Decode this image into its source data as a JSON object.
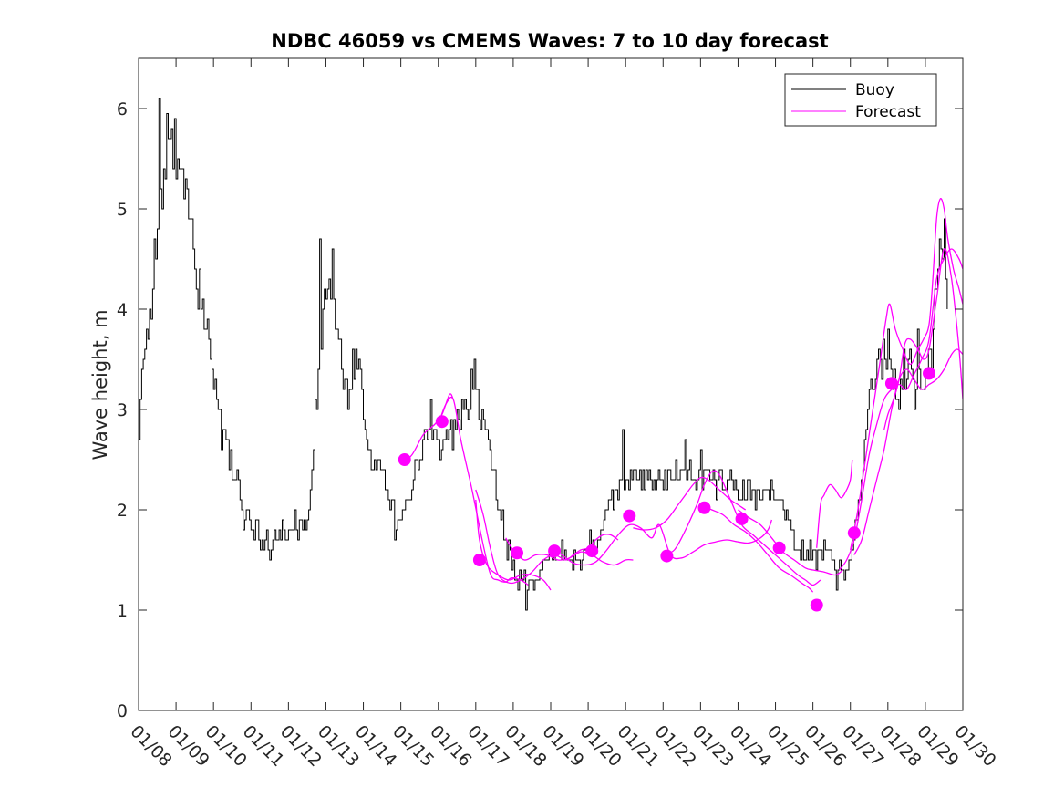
{
  "chart_data": {
    "type": "line",
    "title": "NDBC 46059 vs CMEMS Waves: 7 to 10 day forecast",
    "xlabel": "",
    "ylabel": "Wave height, m",
    "x_tick_labels": [
      "01/08",
      "01/09",
      "01/10",
      "01/11",
      "01/12",
      "01/13",
      "01/14",
      "01/15",
      "01/16",
      "01/17",
      "01/18",
      "01/19",
      "01/20",
      "01/21",
      "01/22",
      "01/23",
      "01/24",
      "01/25",
      "01/26",
      "01/27",
      "01/28",
      "01/29",
      "01/30"
    ],
    "y_ticks": [
      0,
      1,
      2,
      3,
      4,
      5,
      6
    ],
    "xlim": [
      0,
      22
    ],
    "ylim": [
      0,
      6.5
    ],
    "legend": {
      "position": "top-right",
      "entries": [
        "Buoy",
        "Forecast"
      ]
    },
    "colors": {
      "buoy": "#000000",
      "forecast": "#ff00ff"
    },
    "buoy_anchors": [
      [
        0,
        2.8
      ],
      [
        0.05,
        3.2
      ],
      [
        0.2,
        3.6
      ],
      [
        0.3,
        4.0
      ],
      [
        0.5,
        4.8
      ],
      [
        0.7,
        5.3
      ],
      [
        0.85,
        5.6
      ],
      [
        0.95,
        5.7
      ],
      [
        1.1,
        5.3
      ],
      [
        1.3,
        5.0
      ],
      [
        1.5,
        4.5
      ],
      [
        1.7,
        4.0
      ],
      [
        1.9,
        3.5
      ],
      [
        2.1,
        3.1
      ],
      [
        2.25,
        2.8
      ],
      [
        2.4,
        2.6
      ],
      [
        2.6,
        2.3
      ],
      [
        2.8,
        2.05
      ],
      [
        2.95,
        1.9
      ],
      [
        3.1,
        1.75
      ],
      [
        3.3,
        1.67
      ],
      [
        3.5,
        1.7
      ],
      [
        3.8,
        1.78
      ],
      [
        4.1,
        1.8
      ],
      [
        4.3,
        1.82
      ],
      [
        4.45,
        1.9
      ],
      [
        4.6,
        2.2
      ],
      [
        4.7,
        2.9
      ],
      [
        4.85,
        3.6
      ],
      [
        4.95,
        4.1
      ],
      [
        5.1,
        4.3
      ],
      [
        5.2,
        4.0
      ],
      [
        5.35,
        3.6
      ],
      [
        5.5,
        3.2
      ],
      [
        5.6,
        3.25
      ],
      [
        5.75,
        3.5
      ],
      [
        5.9,
        3.3
      ],
      [
        6.0,
        3.0
      ],
      [
        6.1,
        2.7
      ],
      [
        6.25,
        2.4
      ],
      [
        6.45,
        2.4
      ],
      [
        6.6,
        2.2
      ],
      [
        6.8,
        2.0
      ],
      [
        6.95,
        1.85
      ],
      [
        7.1,
        2.0
      ],
      [
        7.3,
        2.3
      ],
      [
        7.5,
        2.55
      ],
      [
        7.7,
        2.75
      ],
      [
        7.9,
        2.75
      ],
      [
        8.05,
        2.6
      ],
      [
        8.2,
        2.75
      ],
      [
        8.4,
        2.9
      ],
      [
        8.6,
        2.95
      ],
      [
        8.8,
        3.0
      ],
      [
        8.9,
        3.15
      ],
      [
        9.05,
        3.1
      ],
      [
        9.15,
        2.95
      ],
      [
        9.3,
        2.7
      ],
      [
        9.5,
        2.3
      ],
      [
        9.7,
        1.9
      ],
      [
        9.9,
        1.6
      ],
      [
        10.05,
        1.35
      ],
      [
        10.2,
        1.3
      ],
      [
        10.4,
        1.27
      ],
      [
        10.6,
        1.3
      ],
      [
        10.8,
        1.45
      ],
      [
        11.0,
        1.55
      ],
      [
        11.2,
        1.55
      ],
      [
        11.4,
        1.52
      ],
      [
        11.6,
        1.55
      ],
      [
        11.8,
        1.6
      ],
      [
        12.0,
        1.6
      ],
      [
        12.15,
        1.65
      ],
      [
        12.3,
        1.7
      ],
      [
        12.45,
        2.0
      ],
      [
        12.6,
        2.15
      ],
      [
        12.8,
        2.2
      ],
      [
        13.0,
        2.25
      ],
      [
        13.2,
        2.35
      ],
      [
        13.5,
        2.35
      ],
      [
        13.8,
        2.3
      ],
      [
        14.0,
        2.3
      ],
      [
        14.3,
        2.35
      ],
      [
        14.6,
        2.35
      ],
      [
        14.9,
        2.3
      ],
      [
        15.2,
        2.3
      ],
      [
        15.5,
        2.25
      ],
      [
        15.8,
        2.2
      ],
      [
        16.1,
        2.2
      ],
      [
        16.4,
        2.2
      ],
      [
        16.7,
        2.2
      ],
      [
        16.9,
        2.2
      ],
      [
        17.1,
        2.1
      ],
      [
        17.25,
        1.95
      ],
      [
        17.4,
        1.85
      ],
      [
        17.55,
        1.7
      ],
      [
        17.7,
        1.6
      ],
      [
        17.9,
        1.55
      ],
      [
        18.1,
        1.5
      ],
      [
        18.3,
        1.6
      ],
      [
        18.45,
        1.55
      ],
      [
        18.6,
        1.4
      ],
      [
        18.8,
        1.4
      ],
      [
        19.0,
        1.5
      ],
      [
        19.1,
        1.75
      ],
      [
        19.25,
        2.2
      ],
      [
        19.4,
        2.8
      ],
      [
        19.55,
        3.2
      ],
      [
        19.7,
        3.4
      ],
      [
        19.85,
        3.5
      ],
      [
        20.0,
        3.45
      ],
      [
        20.15,
        3.3
      ],
      [
        20.3,
        3.1
      ],
      [
        20.45,
        3.3
      ],
      [
        20.6,
        3.5
      ],
      [
        20.75,
        3.3
      ],
      [
        20.9,
        3.25
      ],
      [
        21.05,
        3.4
      ],
      [
        21.2,
        3.6
      ],
      [
        21.3,
        4.2
      ],
      [
        21.4,
        4.8
      ],
      [
        21.5,
        4.5
      ],
      [
        21.6,
        4.1
      ]
    ],
    "buoy_spikes": [
      [
        0.55,
        6.1
      ],
      [
        0.75,
        5.95
      ],
      [
        0.95,
        5.9
      ],
      [
        1.05,
        5.5
      ],
      [
        1.25,
        5.3
      ],
      [
        4.85,
        4.7
      ],
      [
        5.15,
        4.6
      ],
      [
        7.8,
        3.1
      ],
      [
        8.95,
        3.5
      ],
      [
        12.9,
        2.8
      ],
      [
        14.6,
        2.7
      ],
      [
        20.0,
        3.8
      ],
      [
        20.8,
        3.8
      ],
      [
        21.5,
        4.9
      ]
    ],
    "forecast_dots": [
      [
        7.1,
        2.5
      ],
      [
        8.1,
        2.88
      ],
      [
        9.1,
        1.5
      ],
      [
        10.1,
        1.57
      ],
      [
        11.1,
        1.59
      ],
      [
        12.1,
        1.59
      ],
      [
        13.1,
        1.94
      ],
      [
        14.1,
        1.54
      ],
      [
        15.1,
        2.02
      ],
      [
        16.1,
        1.91
      ],
      [
        17.1,
        1.62
      ],
      [
        18.1,
        1.05
      ],
      [
        19.1,
        1.77
      ],
      [
        20.1,
        3.26
      ],
      [
        21.1,
        3.36
      ]
    ],
    "forecast_lines": [
      [
        [
          7.0,
          2.45
        ],
        [
          7.3,
          2.55
        ],
        [
          7.6,
          2.75
        ],
        [
          7.9,
          2.85
        ],
        [
          8.1,
          2.95
        ],
        [
          8.3,
          3.15
        ],
        [
          8.4,
          3.1
        ]
      ],
      [
        [
          8.0,
          2.85
        ],
        [
          8.2,
          3.05
        ],
        [
          8.4,
          3.1
        ],
        [
          8.6,
          2.7
        ],
        [
          8.9,
          2.2
        ],
        [
          9.2,
          1.65
        ],
        [
          9.4,
          1.35
        ],
        [
          9.6,
          1.3
        ],
        [
          9.8,
          1.28
        ],
        [
          9.95,
          1.32
        ],
        [
          10.2,
          1.3
        ],
        [
          10.4,
          1.25
        ]
      ],
      [
        [
          9.0,
          2.1
        ],
        [
          9.1,
          1.7
        ],
        [
          9.3,
          1.45
        ],
        [
          9.6,
          1.35
        ],
        [
          9.9,
          1.3
        ],
        [
          10.2,
          1.35
        ],
        [
          10.5,
          1.35
        ],
        [
          10.8,
          1.3
        ],
        [
          11.0,
          1.2
        ]
      ],
      [
        [
          9.0,
          2.2
        ],
        [
          9.2,
          1.95
        ],
        [
          9.4,
          1.6
        ],
        [
          9.6,
          1.35
        ],
        [
          9.9,
          1.27
        ],
        [
          10.2,
          1.3
        ],
        [
          10.5,
          1.38
        ],
        [
          10.8,
          1.5
        ],
        [
          11.1,
          1.55
        ],
        [
          11.4,
          1.5
        ],
        [
          11.6,
          1.55
        ],
        [
          11.8,
          1.6
        ],
        [
          12.0,
          1.62
        ],
        [
          12.2,
          1.7
        ],
        [
          12.4,
          1.75
        ],
        [
          12.6,
          1.75
        ],
        [
          12.8,
          1.7
        ]
      ],
      [
        [
          9.8,
          1.72
        ],
        [
          10.0,
          1.6
        ],
        [
          10.3,
          1.5
        ],
        [
          10.6,
          1.55
        ],
        [
          10.9,
          1.55
        ],
        [
          11.2,
          1.5
        ],
        [
          11.5,
          1.52
        ],
        [
          11.8,
          1.58
        ],
        [
          12.1,
          1.55
        ],
        [
          12.4,
          1.48
        ],
        [
          12.7,
          1.45
        ],
        [
          13.0,
          1.5
        ],
        [
          13.2,
          1.5
        ]
      ],
      [
        [
          11.0,
          1.6
        ],
        [
          11.3,
          1.55
        ],
        [
          11.6,
          1.47
        ],
        [
          11.9,
          1.45
        ],
        [
          12.2,
          1.48
        ],
        [
          12.5,
          1.6
        ],
        [
          12.8,
          1.75
        ],
        [
          13.1,
          1.85
        ],
        [
          13.4,
          1.82
        ],
        [
          13.7,
          1.72
        ],
        [
          13.9,
          1.85
        ],
        [
          14.2,
          1.55
        ],
        [
          14.5,
          1.52
        ],
        [
          14.8,
          1.58
        ],
        [
          15.1,
          1.65
        ],
        [
          15.4,
          1.68
        ],
        [
          15.7,
          1.7
        ],
        [
          16.0,
          1.68
        ],
        [
          16.3,
          1.67
        ],
        [
          16.6,
          1.72
        ],
        [
          16.8,
          1.8
        ],
        [
          16.9,
          1.9
        ]
      ],
      [
        [
          13.2,
          1.82
        ],
        [
          13.5,
          1.8
        ],
        [
          13.8,
          1.82
        ],
        [
          14.1,
          1.9
        ],
        [
          14.4,
          2.05
        ],
        [
          14.6,
          2.15
        ],
        [
          14.8,
          2.25
        ],
        [
          15.0,
          2.32
        ],
        [
          15.2,
          2.3
        ],
        [
          15.5,
          2.2
        ],
        [
          15.8,
          2.1
        ],
        [
          16.0,
          2.05
        ],
        [
          16.2,
          2.0
        ]
      ],
      [
        [
          14.0,
          1.55
        ],
        [
          14.3,
          1.6
        ],
        [
          14.6,
          1.8
        ],
        [
          14.9,
          2.05
        ],
        [
          15.1,
          2.25
        ],
        [
          15.3,
          2.38
        ],
        [
          15.5,
          2.35
        ],
        [
          15.8,
          2.1
        ],
        [
          16.1,
          1.85
        ],
        [
          16.4,
          1.75
        ],
        [
          16.7,
          1.65
        ],
        [
          17.0,
          1.55
        ],
        [
          17.3,
          1.45
        ],
        [
          17.6,
          1.35
        ],
        [
          17.8,
          1.3
        ],
        [
          18.0,
          1.25
        ],
        [
          18.2,
          1.3
        ]
      ],
      [
        [
          15.0,
          2.05
        ],
        [
          15.3,
          2.0
        ],
        [
          15.6,
          1.95
        ],
        [
          15.9,
          1.85
        ],
        [
          16.2,
          1.78
        ],
        [
          16.5,
          1.68
        ],
        [
          16.8,
          1.55
        ],
        [
          17.1,
          1.42
        ],
        [
          17.4,
          1.35
        ],
        [
          17.7,
          1.27
        ],
        [
          17.9,
          1.22
        ],
        [
          18.0,
          1.18
        ]
      ],
      [
        [
          16.0,
          2.0
        ],
        [
          16.3,
          1.92
        ],
        [
          16.6,
          1.85
        ],
        [
          16.9,
          1.72
        ],
        [
          17.2,
          1.58
        ],
        [
          17.5,
          1.5
        ],
        [
          17.8,
          1.42
        ],
        [
          18.0,
          1.4
        ],
        [
          18.3,
          1.38
        ],
        [
          18.6,
          1.35
        ],
        [
          18.8,
          1.4
        ]
      ],
      [
        [
          18.1,
          1.62
        ],
        [
          18.2,
          2.05
        ],
        [
          18.3,
          2.15
        ],
        [
          18.45,
          2.25
        ],
        [
          18.6,
          2.2
        ],
        [
          18.75,
          2.12
        ],
        [
          18.9,
          2.2
        ],
        [
          19.0,
          2.3
        ],
        [
          19.05,
          2.5
        ]
      ],
      [
        [
          18.7,
          1.4
        ],
        [
          18.9,
          1.5
        ],
        [
          19.1,
          1.7
        ],
        [
          19.3,
          2.1
        ],
        [
          19.5,
          2.55
        ],
        [
          19.7,
          2.85
        ],
        [
          19.9,
          3.1
        ],
        [
          20.1,
          3.2
        ],
        [
          20.3,
          3.25
        ],
        [
          20.5,
          3.2
        ],
        [
          20.7,
          3.35
        ],
        [
          20.9,
          3.5
        ],
        [
          21.1,
          3.7
        ],
        [
          21.3,
          4.3
        ],
        [
          21.5,
          4.5
        ],
        [
          21.7,
          4.6
        ],
        [
          21.9,
          4.5
        ],
        [
          22.0,
          4.4
        ]
      ],
      [
        [
          19.0,
          1.6
        ],
        [
          19.2,
          2.0
        ],
        [
          19.4,
          2.5
        ],
        [
          19.6,
          3.0
        ],
        [
          19.8,
          3.5
        ],
        [
          19.95,
          3.9
        ],
        [
          20.05,
          4.05
        ],
        [
          20.2,
          3.8
        ],
        [
          20.4,
          3.6
        ],
        [
          20.6,
          3.45
        ],
        [
          20.8,
          3.6
        ],
        [
          20.95,
          3.7
        ],
        [
          21.1,
          3.85
        ],
        [
          21.2,
          4.3
        ],
        [
          21.3,
          4.9
        ],
        [
          21.4,
          5.1
        ],
        [
          21.5,
          5.0
        ],
        [
          21.6,
          4.7
        ],
        [
          21.75,
          4.4
        ],
        [
          21.9,
          4.2
        ],
        [
          22.0,
          4.05
        ]
      ],
      [
        [
          19.1,
          1.55
        ],
        [
          19.3,
          1.7
        ],
        [
          19.5,
          2.0
        ],
        [
          19.7,
          2.3
        ],
        [
          19.9,
          2.6
        ],
        [
          20.1,
          3.0
        ],
        [
          20.3,
          3.3
        ],
        [
          20.5,
          3.4
        ],
        [
          20.7,
          3.3
        ],
        [
          20.9,
          3.2
        ],
        [
          21.1,
          3.25
        ],
        [
          21.3,
          3.3
        ],
        [
          21.5,
          3.4
        ],
        [
          21.7,
          3.55
        ],
        [
          21.85,
          3.6
        ],
        [
          22.0,
          3.55
        ]
      ],
      [
        [
          19.9,
          2.8
        ],
        [
          20.0,
          2.95
        ],
        [
          20.15,
          3.1
        ],
        [
          20.3,
          3.3
        ],
        [
          20.45,
          3.65
        ],
        [
          20.6,
          3.7
        ],
        [
          20.8,
          3.6
        ],
        [
          20.95,
          3.5
        ],
        [
          21.1,
          3.6
        ],
        [
          21.3,
          4.1
        ],
        [
          21.5,
          4.6
        ],
        [
          21.7,
          4.3
        ],
        [
          21.9,
          3.6
        ],
        [
          22.0,
          3.1
        ]
      ]
    ]
  }
}
